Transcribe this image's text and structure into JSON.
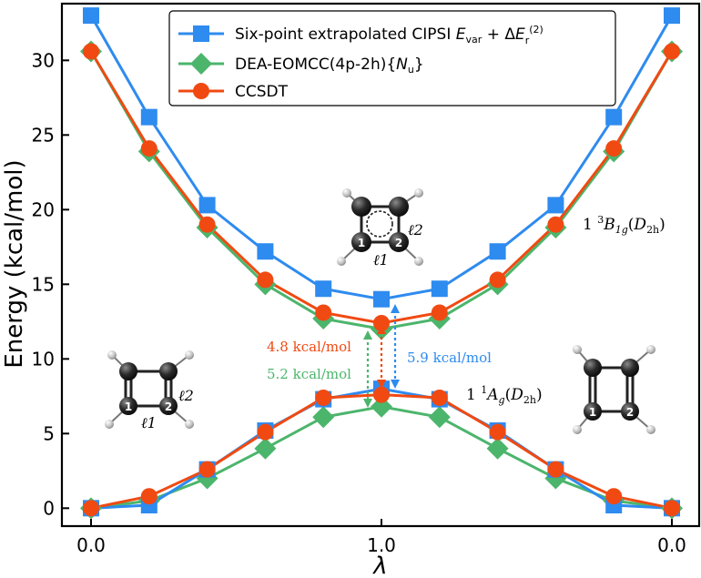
{
  "chart_data": {
    "type": "line",
    "xlabel": "λ",
    "ylabel": "Energy (kcal/mol)",
    "xticks": [
      "0.0",
      "1.0",
      "0.0"
    ],
    "yticks": [
      "0",
      "5",
      "10",
      "15",
      "20",
      "25",
      "30"
    ],
    "ylim": [
      -1.2,
      33.8
    ],
    "x": [
      0.0,
      0.2,
      0.4,
      0.6,
      0.8,
      1.0,
      0.8,
      0.6,
      0.4,
      0.2,
      0.0
    ],
    "series": [
      {
        "name": "Six-point extrapolated CIPSI",
        "legend_label": "Six-point extrapolated CIPSI E_var + ΔE_r^(2)",
        "color": "#2E8BEF",
        "marker": "square",
        "upper": [
          33.0,
          26.2,
          20.3,
          17.2,
          14.7,
          14.0,
          14.7,
          17.2,
          20.3,
          26.2,
          33.0
        ],
        "lower": [
          0.0,
          0.2,
          2.6,
          5.2,
          7.3,
          8.0,
          7.3,
          5.2,
          2.6,
          0.2,
          0.0
        ]
      },
      {
        "name": "DEA-EOMCC(4p-2h){N_u}",
        "legend_label": "DEA-EOMCC(4p-2h){N_u}",
        "color": "#4CB56C",
        "marker": "diamond",
        "upper": [
          30.6,
          23.9,
          18.8,
          15.0,
          12.7,
          12.0,
          12.7,
          15.0,
          18.8,
          23.9,
          30.6
        ],
        "lower": [
          0.0,
          0.5,
          2.0,
          4.0,
          6.1,
          6.8,
          6.1,
          4.0,
          2.0,
          0.5,
          0.0
        ]
      },
      {
        "name": "CCSDT",
        "legend_label": "CCSDT",
        "color": "#F04A12",
        "marker": "circle",
        "upper": [
          30.6,
          24.1,
          19.0,
          15.3,
          13.1,
          12.4,
          13.1,
          15.3,
          19.0,
          24.1,
          30.6
        ],
        "lower": [
          0.0,
          0.8,
          2.6,
          5.1,
          7.4,
          7.6,
          7.4,
          5.1,
          2.6,
          0.8,
          0.0
        ]
      }
    ],
    "legend": {
      "placement": "top-center",
      "entries": [
        "Six-point extrapolated CIPSI",
        "DEA-EOMCC(4p-2h){Nu}",
        "CCSDT"
      ]
    },
    "annotations": {
      "gap_ccsdt": "4.8 kcal/mol",
      "gap_dea": "5.2 kcal/mol",
      "gap_cipsi": "5.9 kcal/mol",
      "upper_state": "1 3B1g(D2h)",
      "lower_state": "1 1Ag(D2h)",
      "bond_l1": "ℓ1",
      "bond_l2": "ℓ2",
      "atom_1": "1",
      "atom_2": "2"
    }
  }
}
